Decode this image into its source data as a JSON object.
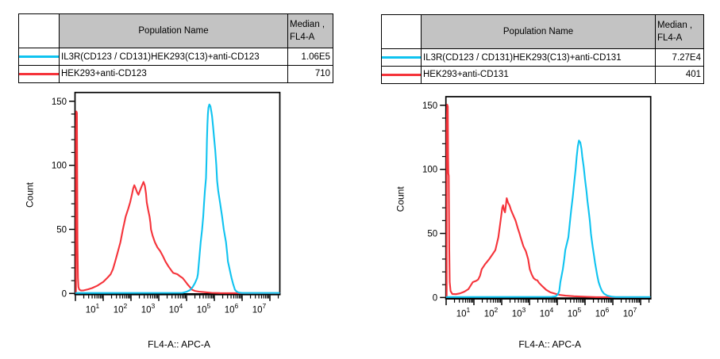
{
  "panels": [
    {
      "table": {
        "population_header": "Population Name",
        "median_header_line1": "Median ,",
        "median_header_line2": "FL4-A",
        "rows": [
          {
            "color": "#0fc3f0",
            "name": "IL3R(CD123 / CD131)HEK293(C13)+anti-CD123",
            "median": "1.06E5"
          },
          {
            "color": "#f5333a",
            "name": "HEK293+anti-CD123",
            "median": "710"
          }
        ]
      }
    },
    {
      "table": {
        "population_header": "Population Name",
        "median_header_line1": "Median ,",
        "median_header_line2": "FL4-A",
        "rows": [
          {
            "color": "#0fc3f0",
            "name": "IL3R(CD123 / CD131)HEK293(C13)+anti-CD131",
            "median": "7.27E4"
          },
          {
            "color": "#f5333a",
            "name": "HEK293+anti-CD131",
            "median": "401"
          }
        ]
      }
    }
  ],
  "chart_data": [
    {
      "type": "line",
      "title": "",
      "xlabel": "FL4-A:: APC-A",
      "ylabel": "Count",
      "x_scale": "log10",
      "x_tick_exponents": [
        1,
        2,
        3,
        4,
        5,
        6,
        7
      ],
      "x_range_log10": [
        0,
        7.36
      ],
      "ylim": [
        0,
        157
      ],
      "yticks": [
        0,
        50,
        100,
        150
      ],
      "grid": false,
      "legend": "table above plot",
      "series": [
        {
          "name": "HEK293+anti-CD123",
          "color": "#f5333a",
          "median": "710",
          "points_log10x_count": [
            [
              0.02,
              0.3
            ],
            [
              0.02,
              125
            ],
            [
              0.035,
              142
            ],
            [
              0.055,
              141
            ],
            [
              0.065,
              85
            ],
            [
              0.075,
              40
            ],
            [
              0.09,
              12
            ],
            [
              0.11,
              5
            ],
            [
              0.14,
              3
            ],
            [
              0.2,
              2.3
            ],
            [
              0.3,
              2.4
            ],
            [
              0.45,
              3.2
            ],
            [
              0.6,
              4.2
            ],
            [
              0.8,
              6.2
            ],
            [
              1.0,
              9
            ],
            [
              1.14,
              12
            ],
            [
              1.27,
              15
            ],
            [
              1.35,
              19
            ],
            [
              1.43,
              25
            ],
            [
              1.52,
              32
            ],
            [
              1.62,
              40
            ],
            [
              1.71,
              50
            ],
            [
              1.81,
              60
            ],
            [
              1.9,
              66
            ],
            [
              1.97,
              71
            ],
            [
              2.03,
              77
            ],
            [
              2.08,
              82
            ],
            [
              2.12,
              84.5
            ],
            [
              2.17,
              82
            ],
            [
              2.22,
              79
            ],
            [
              2.27,
              77
            ],
            [
              2.32,
              80
            ],
            [
              2.39,
              84
            ],
            [
              2.45,
              87
            ],
            [
              2.5,
              84
            ],
            [
              2.54,
              78
            ],
            [
              2.57,
              71
            ],
            [
              2.62,
              65
            ],
            [
              2.67,
              60
            ],
            [
              2.7,
              55
            ],
            [
              2.72,
              50
            ],
            [
              2.78,
              45
            ],
            [
              2.86,
              40
            ],
            [
              2.95,
              36
            ],
            [
              3.05,
              33
            ],
            [
              3.14,
              29.5
            ],
            [
              3.24,
              25
            ],
            [
              3.35,
              21
            ],
            [
              3.45,
              18
            ],
            [
              3.52,
              16
            ],
            [
              3.6,
              15.5
            ],
            [
              3.67,
              15
            ],
            [
              3.76,
              13.5
            ],
            [
              3.86,
              12
            ],
            [
              3.95,
              9.5
            ],
            [
              4.04,
              7
            ],
            [
              4.12,
              5
            ],
            [
              4.19,
              3
            ],
            [
              4.3,
              2
            ],
            [
              4.45,
              1.4
            ],
            [
              4.65,
              1
            ],
            [
              4.9,
              0.5
            ],
            [
              5.2,
              0.3
            ],
            [
              7.33,
              0.25
            ]
          ]
        },
        {
          "name": "IL3R(CD123 / CD131)HEK293(C13)+anti-CD123",
          "color": "#0fc3f0",
          "median": "1.06E5",
          "points_log10x_count": [
            [
              0.02,
              0.4
            ],
            [
              3.85,
              0.5
            ],
            [
              4.0,
              1.3
            ],
            [
              4.13,
              2.7
            ],
            [
              4.22,
              5
            ],
            [
              4.3,
              8
            ],
            [
              4.38,
              12
            ],
            [
              4.41,
              15
            ],
            [
              4.43,
              20
            ],
            [
              4.47,
              30
            ],
            [
              4.51,
              40
            ],
            [
              4.56,
              50
            ],
            [
              4.6,
              60
            ],
            [
              4.63,
              70
            ],
            [
              4.66,
              80
            ],
            [
              4.7,
              90
            ],
            [
              4.72,
              105
            ],
            [
              4.735,
              120
            ],
            [
              4.75,
              132
            ],
            [
              4.77,
              140
            ],
            [
              4.79,
              145
            ],
            [
              4.82,
              147.5
            ],
            [
              4.86,
              146
            ],
            [
              4.9,
              141
            ],
            [
              4.92,
              138
            ],
            [
              4.95,
              131
            ],
            [
              4.99,
              122
            ],
            [
              5.03,
              112
            ],
            [
              5.07,
              100
            ],
            [
              5.1,
              88
            ],
            [
              5.14,
              80
            ],
            [
              5.21,
              70
            ],
            [
              5.28,
              60
            ],
            [
              5.34,
              50
            ],
            [
              5.42,
              40
            ],
            [
              5.47,
              30
            ],
            [
              5.49,
              25
            ],
            [
              5.54,
              20
            ],
            [
              5.59,
              15
            ],
            [
              5.62,
              12
            ],
            [
              5.67,
              8
            ],
            [
              5.71,
              5
            ],
            [
              5.74,
              3
            ],
            [
              5.8,
              1.5
            ],
            [
              5.88,
              0.7
            ],
            [
              6.0,
              0.4
            ],
            [
              7.33,
              0.35
            ]
          ]
        }
      ]
    },
    {
      "type": "line",
      "title": "",
      "xlabel": "FL4-A:: APC-A",
      "ylabel": "Count",
      "x_scale": "log10",
      "x_tick_exponents": [
        1,
        2,
        3,
        4,
        5,
        6,
        7
      ],
      "x_range_log10": [
        0,
        7.36
      ],
      "ylim": [
        0,
        157
      ],
      "yticks": [
        0,
        50,
        100,
        150
      ],
      "grid": false,
      "legend": "table above plot",
      "series": [
        {
          "name": "HEK293+anti-CD131",
          "color": "#f5333a",
          "median": "401",
          "points_log10x_count": [
            [
              0.02,
              0.3
            ],
            [
              0.02,
              135
            ],
            [
              0.04,
              150.5
            ],
            [
              0.06,
              149
            ],
            [
              0.07,
              110
            ],
            [
              0.08,
              97
            ],
            [
              0.095,
              95
            ],
            [
              0.11,
              40
            ],
            [
              0.13,
              12
            ],
            [
              0.16,
              5
            ],
            [
              0.22,
              2.8
            ],
            [
              0.35,
              2.6
            ],
            [
              0.5,
              3.2
            ],
            [
              0.65,
              4.5
            ],
            [
              0.8,
              6.5
            ],
            [
              0.96,
              12
            ],
            [
              1.08,
              13
            ],
            [
              1.15,
              14
            ],
            [
              1.22,
              17
            ],
            [
              1.28,
              22
            ],
            [
              1.4,
              26
            ],
            [
              1.55,
              30
            ],
            [
              1.68,
              34
            ],
            [
              1.77,
              37
            ],
            [
              1.88,
              47
            ],
            [
              1.96,
              60
            ],
            [
              2.02,
              70
            ],
            [
              2.05,
              72
            ],
            [
              2.09,
              68
            ],
            [
              2.12,
              66.5
            ],
            [
              2.15,
              72
            ],
            [
              2.18,
              77.5
            ],
            [
              2.23,
              74
            ],
            [
              2.28,
              72
            ],
            [
              2.34,
              68
            ],
            [
              2.42,
              64
            ],
            [
              2.5,
              60
            ],
            [
              2.58,
              54
            ],
            [
              2.64,
              50
            ],
            [
              2.68,
              47
            ],
            [
              2.78,
              40
            ],
            [
              2.87,
              36
            ],
            [
              2.95,
              30
            ],
            [
              3.01,
              22
            ],
            [
              3.08,
              18
            ],
            [
              3.15,
              15
            ],
            [
              3.22,
              13.8
            ],
            [
              3.28,
              13.5
            ],
            [
              3.34,
              11.5
            ],
            [
              3.45,
              9
            ],
            [
              3.6,
              6
            ],
            [
              3.75,
              4
            ],
            [
              3.95,
              2.8
            ],
            [
              4.1,
              2
            ],
            [
              4.3,
              1.4
            ],
            [
              4.6,
              1
            ],
            [
              5.0,
              0.6
            ],
            [
              5.4,
              0.3
            ],
            [
              7.33,
              0.25
            ]
          ]
        },
        {
          "name": "IL3R(CD123 / CD131)HEK293(C13)+anti-CD131",
          "color": "#0fc3f0",
          "median": "7.27E4",
          "points_log10x_count": [
            [
              0.02,
              0.4
            ],
            [
              3.8,
              0.5
            ],
            [
              3.95,
              1
            ],
            [
              4.02,
              2.5
            ],
            [
              4.07,
              5
            ],
            [
              4.11,
              12
            ],
            [
              4.2,
              22
            ],
            [
              4.25,
              30
            ],
            [
              4.29,
              37
            ],
            [
              4.4,
              47
            ],
            [
              4.45,
              58
            ],
            [
              4.5,
              68
            ],
            [
              4.56,
              79
            ],
            [
              4.61,
              90
            ],
            [
              4.66,
              100
            ],
            [
              4.7,
              110
            ],
            [
              4.74,
              118
            ],
            [
              4.78,
              122.5
            ],
            [
              4.83,
              121
            ],
            [
              4.87,
              116
            ],
            [
              4.9,
              110
            ],
            [
              4.95,
              102
            ],
            [
              5.0,
              92
            ],
            [
              5.05,
              83
            ],
            [
              5.09,
              75
            ],
            [
              5.13,
              68
            ],
            [
              5.17,
              60
            ],
            [
              5.21,
              50
            ],
            [
              5.23,
              47
            ],
            [
              5.27,
              40
            ],
            [
              5.32,
              33
            ],
            [
              5.36,
              27
            ],
            [
              5.4,
              22
            ],
            [
              5.44,
              17
            ],
            [
              5.49,
              12
            ],
            [
              5.55,
              8
            ],
            [
              5.61,
              5
            ],
            [
              5.68,
              3
            ],
            [
              5.8,
              1.5
            ],
            [
              5.95,
              0.7
            ],
            [
              6.1,
              0.4
            ],
            [
              7.33,
              0.35
            ]
          ]
        }
      ]
    }
  ]
}
